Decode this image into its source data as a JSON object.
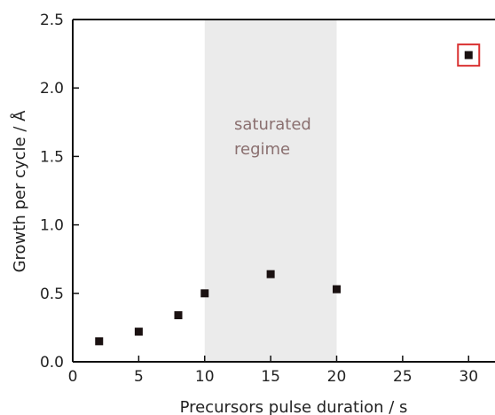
{
  "chart_data": {
    "type": "scatter",
    "title": "",
    "xlabel": "Precursors pulse duration / s",
    "ylabel": "Growth per cycle / Å",
    "xlim": [
      0,
      32
    ],
    "ylim": [
      0,
      2.5
    ],
    "x_ticks": [
      "0",
      "5",
      "10",
      "15",
      "20",
      "25",
      "30"
    ],
    "y_ticks": [
      "0.0",
      "0.5",
      "1.0",
      "1.5",
      "2.0",
      "2.5"
    ],
    "grid": false,
    "legend": "none",
    "series": [
      {
        "x": [
          2,
          5,
          8,
          10,
          15,
          20,
          30
        ],
        "y": [
          0.15,
          0.22,
          0.34,
          0.5,
          0.64,
          0.53,
          2.24
        ],
        "highlighted_point_index": 6
      }
    ],
    "shaded_region": {
      "x_start": 10,
      "x_end": 20,
      "label_lines": [
        "saturated",
        "regime"
      ]
    },
    "colors": {
      "marker": "#1a1111",
      "shaded_region": "#ebebeb",
      "region_text": "#8a6f6f",
      "highlight_box": "#d93030",
      "axis": "#111111"
    }
  }
}
